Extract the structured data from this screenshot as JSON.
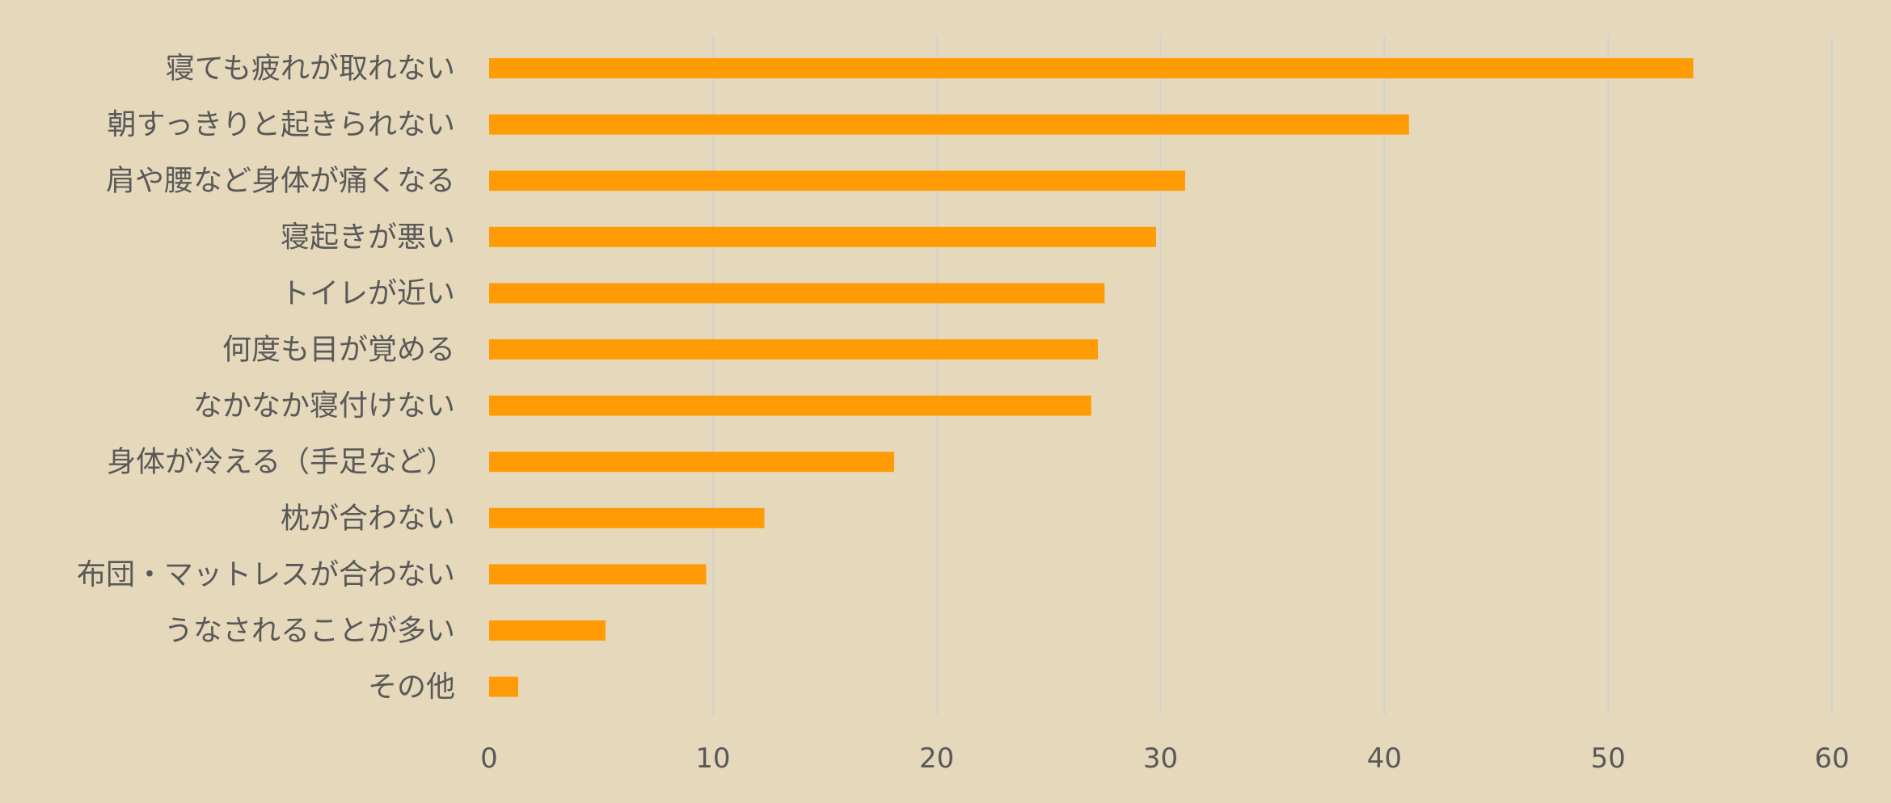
{
  "chart_data": {
    "type": "bar",
    "orientation": "horizontal",
    "categories": [
      "寝ても疲れが取れない",
      "朝すっきりと起きられない",
      "肩や腰など身体が痛くなる",
      "寝起きが悪い",
      "トイレが近い",
      "何度も目が覚める",
      "なかなか寝付けない",
      "身体が冷える（手足など）",
      "枕が合わない",
      "布団・マットレスが合わない",
      "うなされることが多い",
      "その他"
    ],
    "values": [
      53.8,
      41.1,
      31.1,
      29.8,
      27.5,
      27.2,
      26.9,
      18.1,
      12.3,
      9.7,
      5.2,
      1.3
    ],
    "xlim": [
      0,
      60
    ],
    "xticks": [
      "0",
      "10",
      "20",
      "30",
      "40",
      "50",
      "60"
    ],
    "title": "",
    "xlabel": "",
    "ylabel": "",
    "grid": "vertical",
    "legend": "none",
    "colors": {
      "bar": "#ff9b05",
      "background": "#e6d9bb",
      "grid": "#d2d2cc",
      "text": "#595959"
    }
  }
}
